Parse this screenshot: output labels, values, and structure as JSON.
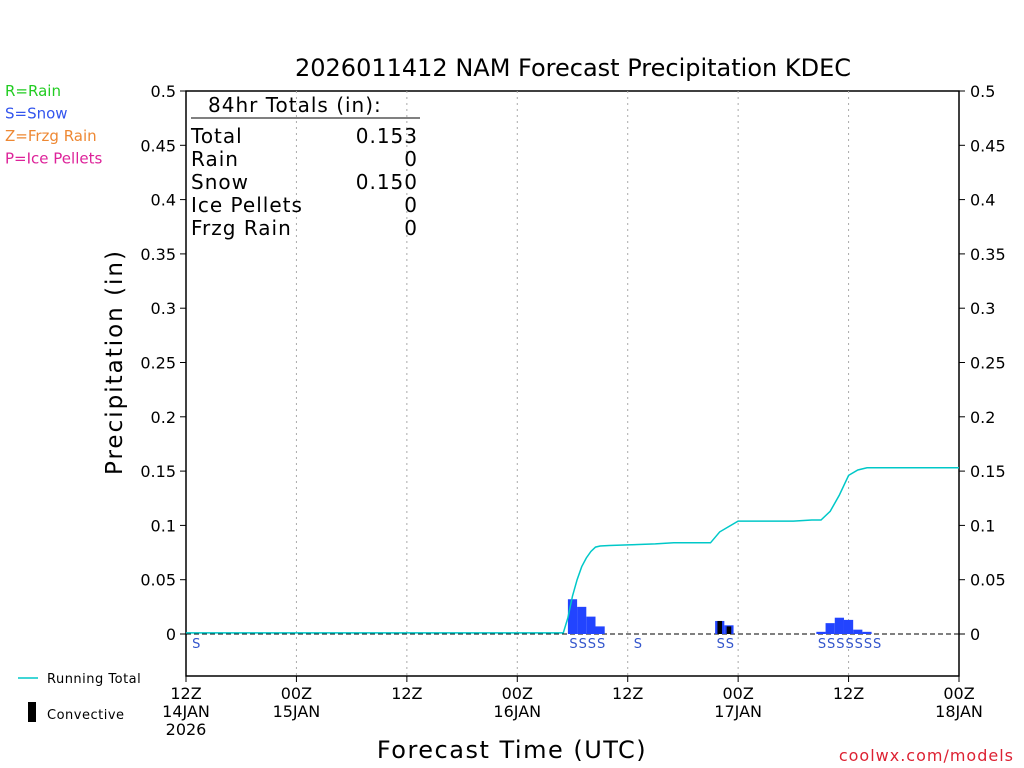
{
  "chart_data": {
    "type": "bar",
    "title": "2026011412 NAM Forecast Precipitation KDEC",
    "xlabel": "Forecast Time (UTC)",
    "ylabel": "Precipitation (in)",
    "ylim": [
      0,
      0.5
    ],
    "y_ticks": [
      0,
      0.05,
      0.1,
      0.15,
      0.2,
      0.25,
      0.3,
      0.35,
      0.4,
      0.45,
      0.5
    ],
    "y_tick_labels": [
      "0",
      "0.05",
      "0.1",
      "0.15",
      "0.2",
      "0.25",
      "0.3",
      "0.35",
      "0.4",
      "0.45",
      "0.5"
    ],
    "x_range_hours": [
      0,
      84
    ],
    "x_ticks": [
      {
        "hour": 0,
        "label": [
          "12Z",
          "14JAN",
          "2026"
        ]
      },
      {
        "hour": 12,
        "label": [
          "00Z",
          "15JAN"
        ]
      },
      {
        "hour": 24,
        "label": [
          "12Z"
        ]
      },
      {
        "hour": 36,
        "label": [
          "00Z",
          "16JAN"
        ]
      },
      {
        "hour": 48,
        "label": [
          "12Z"
        ]
      },
      {
        "hour": 60,
        "label": [
          "00Z",
          "17JAN"
        ]
      },
      {
        "hour": 72,
        "label": [
          "12Z"
        ]
      },
      {
        "hour": 84,
        "label": [
          "00Z",
          "18JAN"
        ]
      }
    ],
    "grid": "vertical dotted every 12h",
    "precip_bars": [
      {
        "hour": 42,
        "value": 0.032,
        "convective": 0.0
      },
      {
        "hour": 43,
        "value": 0.025,
        "convective": 0.0
      },
      {
        "hour": 44,
        "value": 0.016,
        "convective": 0.0
      },
      {
        "hour": 45,
        "value": 0.007,
        "convective": 0.0
      },
      {
        "hour": 58,
        "value": 0.012,
        "convective": 0.012
      },
      {
        "hour": 59,
        "value": 0.008,
        "convective": 0.007
      },
      {
        "hour": 69,
        "value": 0.002,
        "convective": 0.0
      },
      {
        "hour": 70,
        "value": 0.01,
        "convective": 0.0
      },
      {
        "hour": 71,
        "value": 0.015,
        "convective": 0.0
      },
      {
        "hour": 72,
        "value": 0.013,
        "convective": 0.0
      },
      {
        "hour": 73,
        "value": 0.004,
        "convective": 0.0
      },
      {
        "hour": 74,
        "value": 0.002,
        "convective": 0.0
      }
    ],
    "running_total": {
      "name": "Running Total",
      "hours": [
        0,
        41,
        41.5,
        42,
        42.5,
        43,
        43.5,
        44,
        44.5,
        45,
        46,
        48,
        51,
        53,
        55,
        57,
        58,
        59,
        60,
        61,
        62,
        63,
        64,
        66,
        68,
        69,
        70,
        71,
        71.5,
        72,
        73,
        74,
        84
      ],
      "values": [
        0.001,
        0.001,
        0.015,
        0.035,
        0.05,
        0.062,
        0.07,
        0.076,
        0.08,
        0.081,
        0.0815,
        0.082,
        0.083,
        0.084,
        0.084,
        0.084,
        0.094,
        0.099,
        0.104,
        0.104,
        0.104,
        0.104,
        0.104,
        0.104,
        0.105,
        0.105,
        0.113,
        0.128,
        0.137,
        0.146,
        0.151,
        0.153,
        0.153
      ]
    },
    "ptype_markers": [
      {
        "hour": 1,
        "text": "S"
      },
      {
        "hour": 42,
        "text": "S"
      },
      {
        "hour": 43,
        "text": "S"
      },
      {
        "hour": 44,
        "text": "S"
      },
      {
        "hour": 45,
        "text": "S"
      },
      {
        "hour": 49,
        "text": "S"
      },
      {
        "hour": 58,
        "text": "S"
      },
      {
        "hour": 59,
        "text": "S"
      },
      {
        "hour": 69,
        "text": "S"
      },
      {
        "hour": 70,
        "text": "S"
      },
      {
        "hour": 71,
        "text": "S"
      },
      {
        "hour": 72,
        "text": "S"
      },
      {
        "hour": 73,
        "text": "S"
      },
      {
        "hour": 74,
        "text": "S"
      },
      {
        "hour": 75,
        "text": "S"
      }
    ],
    "totals_box": {
      "heading": "84hr Totals (in):",
      "rows": [
        {
          "label": "Total",
          "value": "0.153"
        },
        {
          "label": "Rain",
          "value": "0"
        },
        {
          "label": "Snow",
          "value": "0.150"
        },
        {
          "label": "Ice Pellets",
          "value": "0"
        },
        {
          "label": "Frzg Rain",
          "value": "0"
        }
      ]
    },
    "ptype_legend": [
      {
        "text": "R=Rain",
        "color": "#22cc22"
      },
      {
        "text": "S=Snow",
        "color": "#3355ee"
      },
      {
        "text": "Z=Frzg Rain",
        "color": "#ee8833"
      },
      {
        "text": "P=Ice Pellets",
        "color": "#dd2299"
      }
    ],
    "series_legend": [
      {
        "text": "Running Total",
        "kind": "line",
        "color": "#00c8c8"
      },
      {
        "text": "Convective",
        "kind": "box",
        "color": "#000000"
      }
    ],
    "credit": "coolwx.com/models",
    "colors": {
      "snow_bar": "#2244ff",
      "convective_bar": "#000000",
      "running_total": "#00c8c8",
      "marker": "#3355cc",
      "credit": "#dd2233",
      "grid": "#aaaaaa"
    }
  }
}
